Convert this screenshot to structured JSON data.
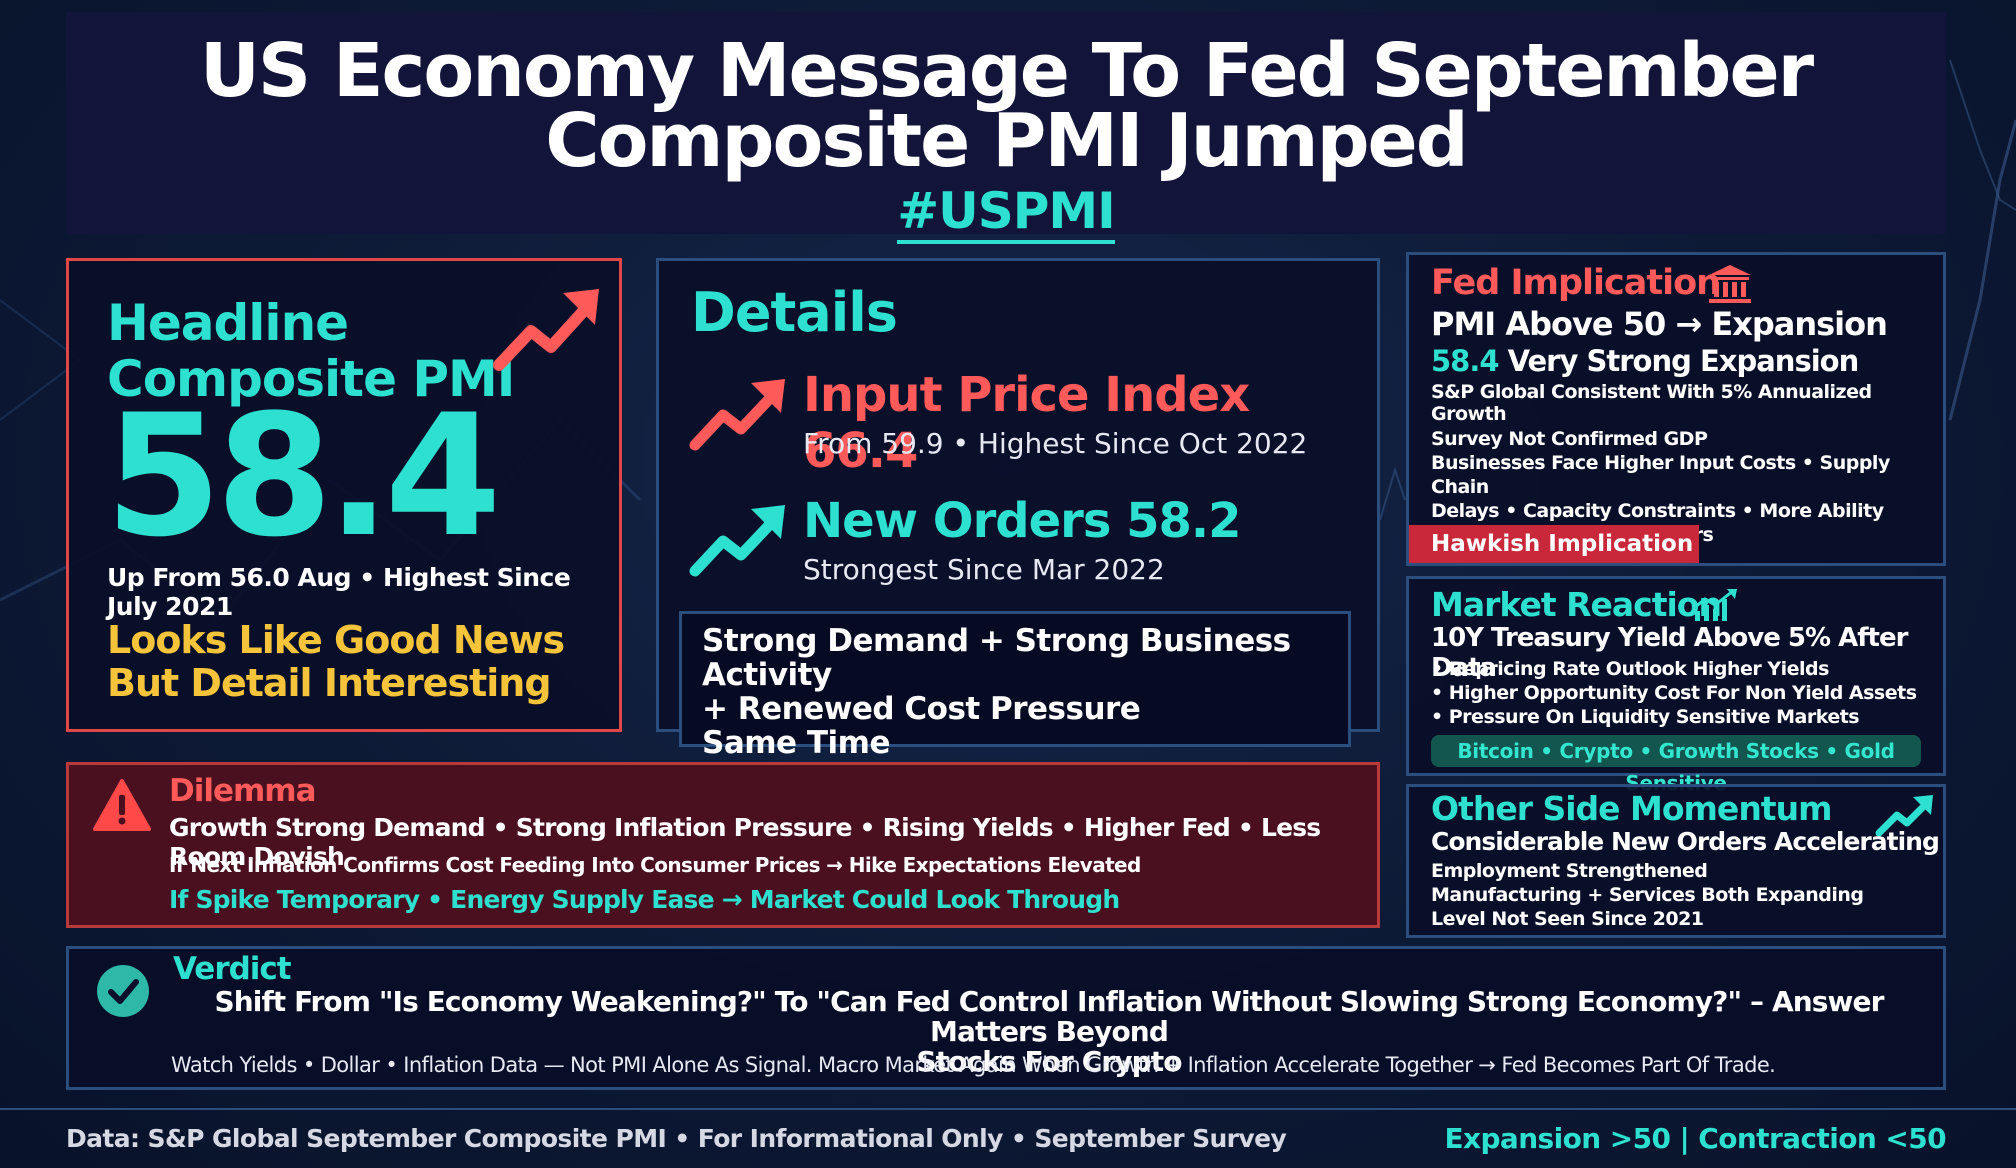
{
  "title": {
    "line1": "US Economy Message To Fed September",
    "line2": "Composite PMI Jumped",
    "hashtag": "#USPMI"
  },
  "headline": {
    "title_line1": "Headline",
    "title_line2": "Composite PMI",
    "value": "58.4",
    "subtitle": "Up From 56.0 Aug • Highest Since July 2021",
    "note_line1": "Looks Like Good News",
    "note_line2": "But Detail Interesting",
    "icon": "trend-up-arrow-icon"
  },
  "details": {
    "title": "Details",
    "input_price": {
      "heading": "Input Price Index 66.4",
      "sub": "From 59.9 • Highest Since Oct 2022"
    },
    "new_orders": {
      "heading": "New Orders 58.2",
      "sub": "Strongest Since Mar 2022"
    },
    "summary": {
      "line1": "Strong Demand + Strong Business Activity",
      "line2": "+ Renewed Cost Pressure",
      "line3": "Same Time"
    }
  },
  "fed": {
    "title": "Fed Implication",
    "line1": "PMI Above 50 → Expansion",
    "line2_value": "58.4",
    "line2_text": " Very Strong Expansion",
    "line3": "S&P Global Consistent With 5% Annualized Growth",
    "body_line1": "Survey Not Confirmed GDP",
    "body_line2": "Businesses Face Higher Input Costs • Supply Chain",
    "body_line3": "Delays • Capacity Constraints • More Ability",
    "body_line4": "To Pass Costs To Customers",
    "badge": "Hawkish Implication",
    "icon": "bank-icon"
  },
  "market": {
    "title": "Market Reaction",
    "line1": "10Y Treasury Yield Above 5% After Data",
    "bullets": [
      "• Repricing Rate Outlook Higher Yields",
      "• Higher Opportunity Cost For Non Yield Assets",
      "• Pressure On Liquidity Sensitive Markets"
    ],
    "chip": "Bitcoin • Crypto • Growth Stocks • Gold Sensitive",
    "icon": "chart-up-icon"
  },
  "other": {
    "title": "Other Side Momentum",
    "line1": "Considerable New Orders Accelerating",
    "items": [
      "Employment Strengthened",
      "Manufacturing + Services Both Expanding",
      "Level Not Seen Since 2021"
    ],
    "icon": "trend-up-arrow-icon"
  },
  "dilemma": {
    "title": "Dilemma",
    "line1": "Growth Strong Demand • Strong Inflation Pressure • Rising Yields • Higher Fed • Less Room Dovish",
    "line2": "If Next Inflation Confirms Cost Feeding Into Consumer Prices → Hike Expectations Elevated",
    "line3": "If Spike Temporary • Energy Supply Ease → Market Could Look Through",
    "icon": "warning-icon"
  },
  "verdict": {
    "title": "Verdict",
    "main_line1": "Shift From \"Is Economy Weakening?\" To \"Can Fed Control Inflation Without Slowing Strong Economy?\" – Answer Matters Beyond",
    "main_line2": "Stocks For Crypto",
    "sub": "Watch Yields • Dollar • Inflation Data — Not PMI Alone As Signal. Macro Market Again When Growth + Inflation Accelerate Together → Fed Becomes Part Of Trade.",
    "icon": "check-circle-icon"
  },
  "footer": {
    "left": "Data: S&P Global September Composite PMI • For Informational Only • September Survey",
    "right": "Expansion >50 | Contraction <50"
  },
  "colors": {
    "accent_teal": "#2de0cf",
    "accent_red": "#ff5a5a",
    "accent_yellow": "#f6c43a",
    "panel_border": "#2a4f7e"
  }
}
